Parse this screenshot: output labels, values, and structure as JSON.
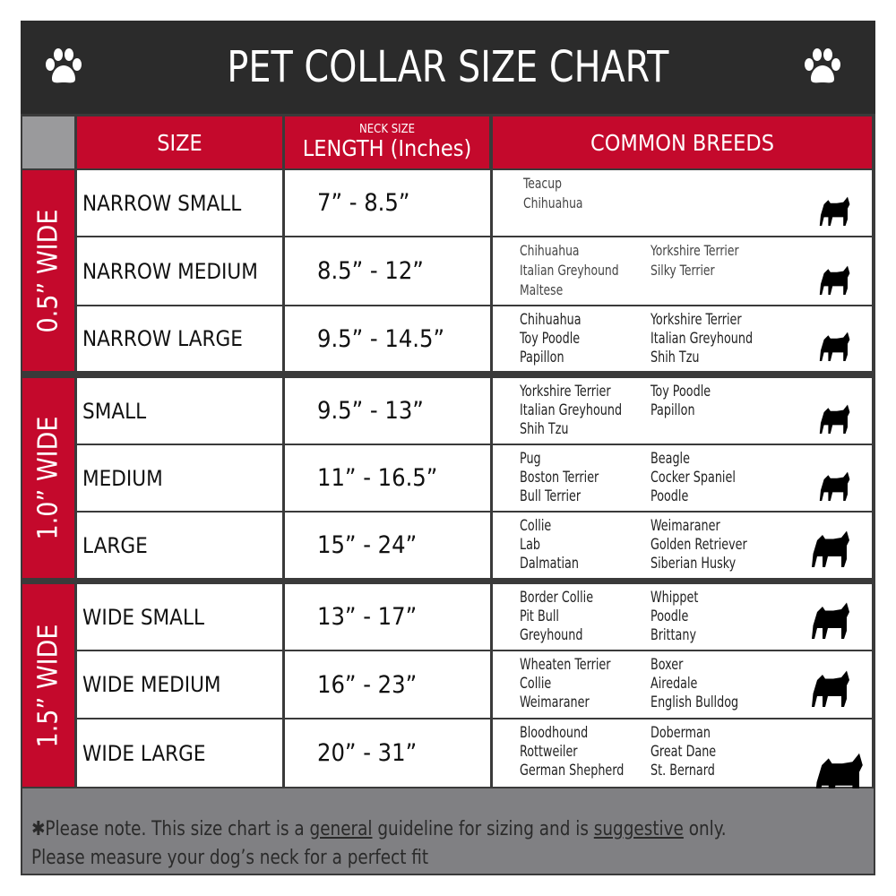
{
  "title": "PET COLLAR SIZE CHART",
  "icons": [
    "paw-icon",
    "paw-icon"
  ],
  "columns": {
    "size": "SIZE",
    "length_small": "NECK SIZE",
    "length": "LENGTH (Inches)",
    "breeds": "COMMON BREEDS"
  },
  "colors": {
    "red": "#c4092c",
    "dark": "#2b2b2b",
    "gray": "#808083"
  },
  "groups": [
    {
      "label": "0.5” WIDE",
      "rows": [
        {
          "size": "NARROW SMALL",
          "length": "7” - 8.5”",
          "breeds_left": [
            "Teacup",
            "Chihuahua"
          ],
          "breeds_right": [],
          "icon": "yorkie-silhouette-icon"
        },
        {
          "size": "NARROW MEDIUM",
          "length": "8.5” - 12”",
          "breeds_left": [
            "Chihuahua",
            "Italian Greyhound",
            "Maltese"
          ],
          "breeds_right": [
            "Yorkshire Terrier",
            "Silky Terrier"
          ],
          "icon": "chihuahua-silhouette-icon"
        },
        {
          "size": "NARROW LARGE",
          "length": "9.5” - 14.5”",
          "breeds_left": [
            "Chihuahua",
            "Toy Poodle",
            "Papillon"
          ],
          "breeds_right": [
            "Yorkshire Terrier",
            "Italian Greyhound",
            "Shih Tzu"
          ],
          "icon": "pomeranian-silhouette-icon"
        }
      ]
    },
    {
      "label": "1.0” WIDE",
      "rows": [
        {
          "size": "SMALL",
          "length": "9.5” - 13”",
          "breeds_left": [
            "Yorkshire Terrier",
            "Italian Greyhound",
            "Shih Tzu"
          ],
          "breeds_right": [
            "Toy Poodle",
            "Papillon"
          ],
          "icon": "pomeranian-silhouette-icon"
        },
        {
          "size": "MEDIUM",
          "length": "11” - 16.5”",
          "breeds_left": [
            "Pug",
            "Boston Terrier",
            "Bull Terrier"
          ],
          "breeds_right": [
            "Beagle",
            "Cocker Spaniel",
            "Poodle"
          ],
          "icon": "dachshund-silhouette-icon"
        },
        {
          "size": "LARGE",
          "length": "15” - 24”",
          "breeds_left": [
            "Collie",
            "Lab",
            "Dalmatian"
          ],
          "breeds_right": [
            "Weimaraner",
            "Golden Retriever",
            "Siberian Husky"
          ],
          "icon": "shepherd-silhouette-icon"
        }
      ]
    },
    {
      "label": "1.5” WIDE",
      "rows": [
        {
          "size": "WIDE SMALL",
          "length": "13” - 17”",
          "breeds_left": [
            "Border Collie",
            "Pit Bull",
            "Greyhound"
          ],
          "breeds_right": [
            "Whippet",
            "Poodle",
            "Brittany"
          ],
          "icon": "bulldog-silhouette-icon"
        },
        {
          "size": "WIDE MEDIUM",
          "length": "16” - 23”",
          "breeds_left": [
            "Wheaten Terrier",
            "Collie",
            "Weimaraner"
          ],
          "breeds_right": [
            "Boxer",
            "Airedale",
            "English Bulldog"
          ],
          "icon": "pitbull-silhouette-icon"
        },
        {
          "size": "WIDE LARGE",
          "length": "20” - 31”",
          "breeds_left": [
            "Bloodhound",
            "Rottweiler",
            "German Shepherd"
          ],
          "breeds_right": [
            "Doberman",
            "Great Dane",
            "St. Bernard"
          ],
          "icon": "doberman-silhouette-icon"
        }
      ]
    }
  ],
  "footer": {
    "prefix": "✱Please note. This size chart is a ",
    "general": "general",
    "mid": " guideline for sizing and is ",
    "suggestive": "suggestive",
    "suffix": " only.",
    "line2": "Please measure your dog’s neck for a perfect fit"
  }
}
